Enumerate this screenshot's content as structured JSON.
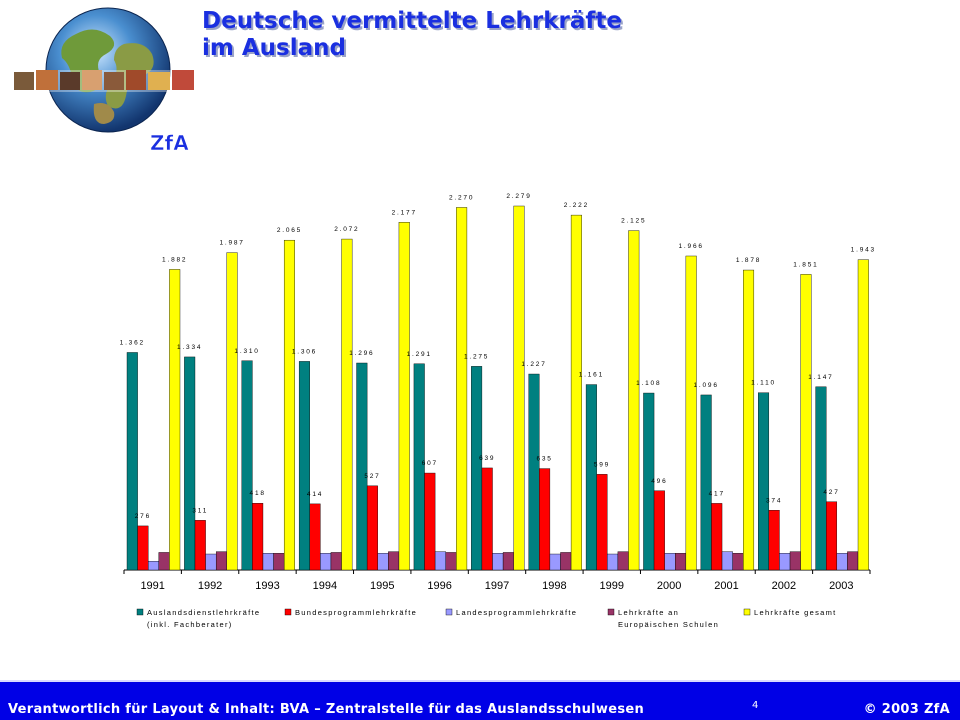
{
  "header": {
    "title_line1": "Deutsche vermittelte Lehrkräfte",
    "title_line2": "im Ausland",
    "logo_text": "ZfA"
  },
  "footer": {
    "left_text": "Verantwortlich für Layout & Inhalt: BVA – Zentralstelle für das Auslandsschulwesen",
    "page_number": "4",
    "right_text": "© 2003 ZfA"
  },
  "colors": {
    "title": "#1a2fe0",
    "footer_bg": "#0000e6",
    "series": [
      "#008080",
      "#ff0000",
      "#9999ff",
      "#993366",
      "#ffff00"
    ]
  },
  "chart_data": {
    "type": "bar",
    "categories": [
      "1991",
      "1992",
      "1993",
      "1994",
      "1995",
      "1996",
      "1997",
      "1998",
      "1999",
      "2000",
      "2001",
      "2002",
      "2003"
    ],
    "ylim": [
      0,
      2400
    ],
    "grid": false,
    "legend_placement": "bottom",
    "series": [
      {
        "name_lines": [
          "Auslandsdienstlehrkräfte",
          "(inkl. Fachberater)"
        ],
        "color": "#008080",
        "values": [
          1362,
          1334,
          1310,
          1306,
          1296,
          1291,
          1275,
          1227,
          1161,
          1108,
          1096,
          1110,
          1147
        ],
        "labels": [
          "1.362",
          "1.334",
          "1.310",
          "1.306",
          "1.296",
          "1.291",
          "1.275",
          "1.227",
          "1.161",
          "1.108",
          "1.096",
          "1.110",
          "1.147"
        ],
        "show_labels": true
      },
      {
        "name_lines": [
          "Bundesprogrammlehrkräfte"
        ],
        "color": "#ff0000",
        "values": [
          276,
          311,
          418,
          414,
          527,
          607,
          639,
          635,
          599,
          496,
          417,
          374,
          427
        ],
        "labels": [
          "276",
          "311",
          "418",
          "414",
          "527",
          "607",
          "639",
          "635",
          "599",
          "496",
          "417",
          "374",
          "427"
        ],
        "show_labels": true
      },
      {
        "name_lines": [
          "Landesprogrammlehrkräfte"
        ],
        "color": "#9999ff",
        "values": [
          55,
          100,
          105,
          105,
          105,
          115,
          105,
          100,
          100,
          105,
          115,
          105,
          105
        ],
        "show_labels": false
      },
      {
        "name_lines": [
          "Lehrkräfte an",
          "Europäischen Schulen"
        ],
        "color": "#993366",
        "values": [
          110,
          115,
          105,
          110,
          115,
          110,
          110,
          110,
          115,
          105,
          105,
          115,
          115
        ],
        "show_labels": false
      },
      {
        "name_lines": [
          "Lehrkräfte gesamt"
        ],
        "color": "#ffff00",
        "values": [
          1882,
          1987,
          2065,
          2072,
          2177,
          2270,
          2279,
          2222,
          2125,
          1966,
          1878,
          1851,
          1943
        ],
        "labels": [
          "1.882",
          "1.987",
          "2.065",
          "2.072",
          "2.177",
          "2.270",
          "2.279",
          "2.222",
          "2.125",
          "1.966",
          "1.878",
          "1.851",
          "1.943"
        ],
        "show_labels": true
      }
    ]
  }
}
